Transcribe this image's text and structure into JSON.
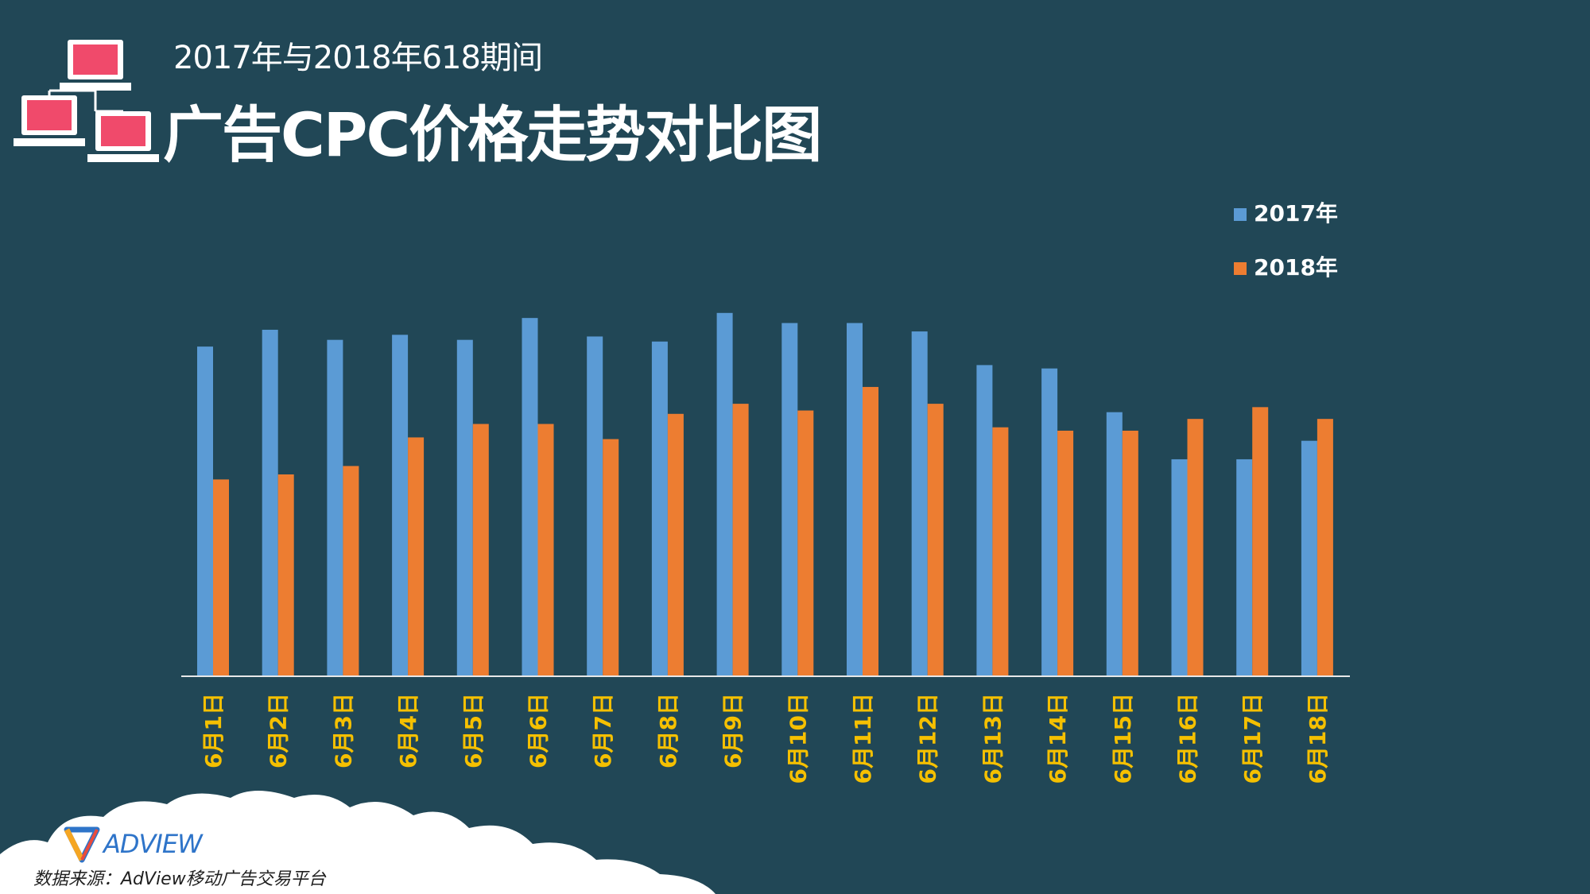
{
  "header": {
    "subtitle": "2017年与2018年618期间",
    "title": "广告CPC价格走势对比图"
  },
  "icons": {
    "network": "network-computers-icon",
    "brand_logo": "adview-logo-icon"
  },
  "footer": {
    "brand": "ADVIEW",
    "source": "数据来源：AdView移动广告交易平台"
  },
  "colors": {
    "background": "#214756",
    "series_2017": "#5b9bd5",
    "series_2018": "#ed7d31",
    "category_label": "#f5c000",
    "legend_text": "#ffffff",
    "screen": "#f04a6b"
  },
  "chart_data": {
    "type": "bar",
    "categories": [
      "6月1日",
      "6月2日",
      "6月3日",
      "6月4日",
      "6月5日",
      "6月6日",
      "6月7日",
      "6月8日",
      "6月9日",
      "6月10日",
      "6月11日",
      "6月12日",
      "6月13日",
      "6月14日",
      "6月15日",
      "6月16日",
      "6月17日",
      "6月18日"
    ],
    "series": [
      {
        "name": "2017年",
        "values": [
          0.98,
          1.03,
          1.0,
          1.015,
          1.0,
          1.065,
          1.01,
          0.995,
          1.08,
          1.05,
          1.05,
          1.025,
          0.925,
          0.915,
          0.785,
          0.645,
          0.645,
          0.7
        ]
      },
      {
        "name": "2018年",
        "values": [
          0.585,
          0.6,
          0.625,
          0.71,
          0.75,
          0.75,
          0.705,
          0.78,
          0.81,
          0.79,
          0.86,
          0.81,
          0.74,
          0.73,
          0.73,
          0.765,
          0.8,
          0.765
        ]
      }
    ],
    "ylim": [
      0,
      1.2
    ],
    "grid": false,
    "legend": "top-right",
    "xlabel": "",
    "ylabel": ""
  }
}
